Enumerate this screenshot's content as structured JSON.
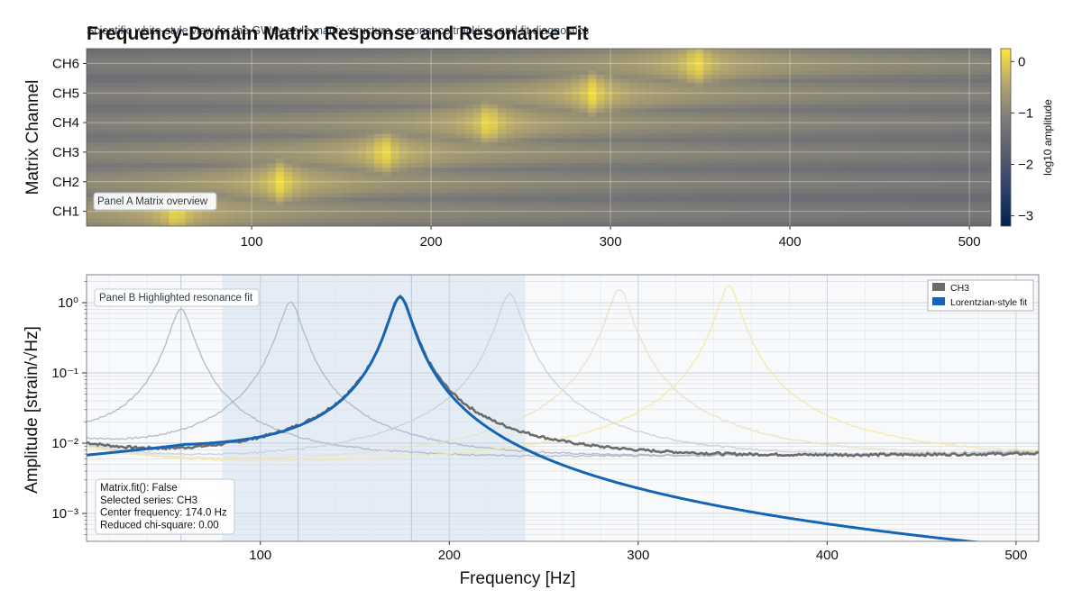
{
  "header": {
    "title": "Frequency-Domain Matrix Response and Resonance Fit",
    "subtitle": "Scientific white-style view for the GWpy-style matrix structure, resonance tracking, and fit diagnostics"
  },
  "colors": {
    "fit": "#1565b5",
    "selected": "#6b6b6b",
    "band_fill": "#dce8f3",
    "panel_bg": "#f7f9fb"
  },
  "chart_data": [
    {
      "type": "heatmap",
      "panel_label": "Panel A  Matrix overview",
      "ylabel": "Matrix Channel",
      "xlabel": "",
      "x_ticks": [
        100,
        200,
        300,
        400,
        500
      ],
      "xlim": [
        8,
        512
      ],
      "categories": [
        "CH1",
        "CH2",
        "CH3",
        "CH4",
        "CH5",
        "CH6"
      ],
      "resonance_peaks_hz": [
        58,
        116,
        174,
        232,
        290,
        348
      ],
      "colorbar": {
        "label": "log10 amplitude",
        "ticks": [
          0,
          -1,
          -2,
          -3
        ],
        "range": [
          -3.2,
          0.25
        ],
        "colormap": "cividis"
      },
      "grid": true
    },
    {
      "type": "line",
      "panel_label": "Panel B  Highlighted resonance fit",
      "xlabel": "Frequency [Hz]",
      "ylabel": "Amplitude [strain/√Hz]",
      "xlim": [
        8,
        512
      ],
      "x_ticks": [
        100,
        200,
        300,
        400,
        500
      ],
      "yscale": "log",
      "ylim": [
        0.0004,
        2.5
      ],
      "y_ticks": [
        {
          "value": 1,
          "label": "10⁰"
        },
        {
          "value": 0.1,
          "label": "10⁻¹"
        },
        {
          "value": 0.01,
          "label": "10⁻²"
        },
        {
          "value": 0.001,
          "label": "10⁻³"
        }
      ],
      "highlight_band": [
        80,
        240
      ],
      "vertical_markers": [
        58,
        120,
        180
      ],
      "series": [
        {
          "name": "CH1",
          "peak_hz": 58,
          "peak_amp": 0.8,
          "color": "#a9b4c6"
        },
        {
          "name": "CH2",
          "peak_hz": 116,
          "peak_amp": 1.0,
          "color": "#a9b4c6"
        },
        {
          "name": "CH3",
          "peak_hz": 174,
          "peak_amp": 1.2,
          "color": "#6b6b6b",
          "selected": true
        },
        {
          "name": "CH4",
          "peak_hz": 232,
          "peak_amp": 1.35,
          "color": "#c9ced6"
        },
        {
          "name": "CH5",
          "peak_hz": 290,
          "peak_amp": 1.55,
          "color": "#e6e2c4"
        },
        {
          "name": "CH6",
          "peak_hz": 348,
          "peak_amp": 1.7,
          "color": "#f6e8a4"
        }
      ],
      "fit": {
        "name": "Lorentzian-style fit",
        "center_hz": 174.0,
        "peak_amp": 1.2
      },
      "legend": {
        "placement": "top-right",
        "entries": [
          {
            "label": "CH3",
            "color": "#6b6b6b"
          },
          {
            "label": "Lorentzian-style fit",
            "color": "#1565b5"
          }
        ]
      },
      "annotation": [
        "Matrix.fit(): False",
        "Selected series: CH3",
        "Center frequency: 174.0 Hz",
        "Reduced chi-square: 0.00"
      ],
      "grid": true
    }
  ]
}
